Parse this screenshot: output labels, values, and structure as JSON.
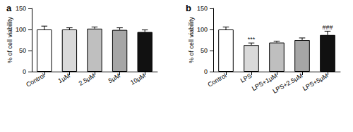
{
  "chart_data": [
    {
      "type": "bar",
      "title": "a",
      "y_label": "% of cell viability",
      "categories": [
        "Control",
        "1μM",
        "2.5μM",
        "5μM",
        "10μM"
      ],
      "values": [
        100,
        100,
        102,
        99,
        94
      ],
      "errors": [
        8,
        4,
        4,
        5,
        5
      ],
      "colors": [
        "#ffffff",
        "#d9d9d9",
        "#bfbfbf",
        "#a6a6a6",
        "#111111"
      ],
      "ylim": [
        0,
        150
      ],
      "yticks": [
        0,
        50,
        100,
        150
      ],
      "grid": false
    },
    {
      "type": "bar",
      "title": "b",
      "y_label": "% of cell viability",
      "categories": [
        "Control",
        "LPS",
        "LPS+1μM",
        "LPS+2.5μM",
        "LPS+5μM"
      ],
      "values": [
        100,
        63,
        69,
        75,
        87
      ],
      "errors": [
        6,
        5,
        3,
        5,
        9
      ],
      "colors": [
        "#ffffff",
        "#d9d9d9",
        "#bfbfbf",
        "#a6a6a6",
        "#111111"
      ],
      "annotations": [
        {
          "category": "LPS",
          "text": "***"
        },
        {
          "category": "LPS+5μM",
          "text": "###"
        }
      ],
      "ylim": [
        0,
        150
      ],
      "yticks": [
        0,
        50,
        100,
        150
      ],
      "grid": false
    }
  ]
}
